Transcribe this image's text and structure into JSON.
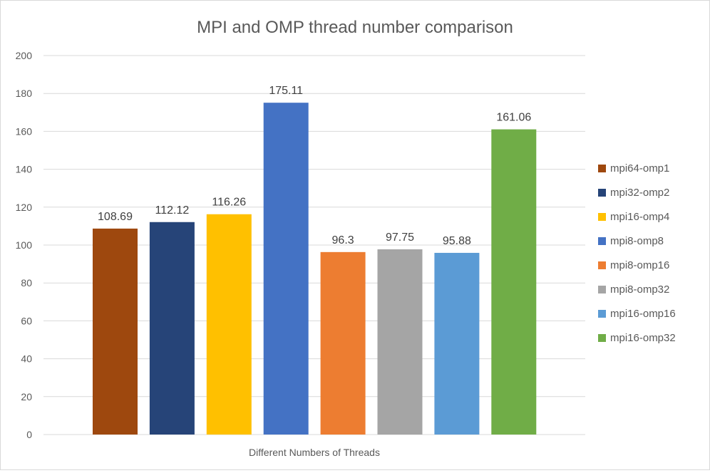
{
  "chart_data": {
    "type": "bar",
    "title": "MPI and OMP thread number comparison",
    "xlabel": "Different Numbers of Threads",
    "ylabel": "",
    "ylim": [
      0,
      200
    ],
    "ytick_step": 20,
    "yticks": [
      "0",
      "20",
      "40",
      "60",
      "80",
      "100",
      "120",
      "140",
      "160",
      "180",
      "200"
    ],
    "grid": true,
    "legend_position": "right",
    "series": [
      {
        "name": "mpi64-omp1",
        "value": 108.69,
        "label": "108.69",
        "color": "#9E480E"
      },
      {
        "name": "mpi32-omp2",
        "value": 112.12,
        "label": "112.12",
        "color": "#264478"
      },
      {
        "name": "mpi16-omp4",
        "value": 116.26,
        "label": "116.26",
        "color": "#FFC000"
      },
      {
        "name": "mpi8-omp8",
        "value": 175.11,
        "label": "175.11",
        "color": "#4472C4"
      },
      {
        "name": "mpi8-omp16",
        "value": 96.3,
        "label": "96.3",
        "color": "#ED7D31"
      },
      {
        "name": "mpi8-omp32",
        "value": 97.75,
        "label": "97.75",
        "color": "#A5A5A5"
      },
      {
        "name": "mpi16-omp16",
        "value": 95.88,
        "label": "95.88",
        "color": "#5B9BD5"
      },
      {
        "name": "mpi16-omp32",
        "value": 161.06,
        "label": "161.06",
        "color": "#70AD47"
      }
    ]
  }
}
